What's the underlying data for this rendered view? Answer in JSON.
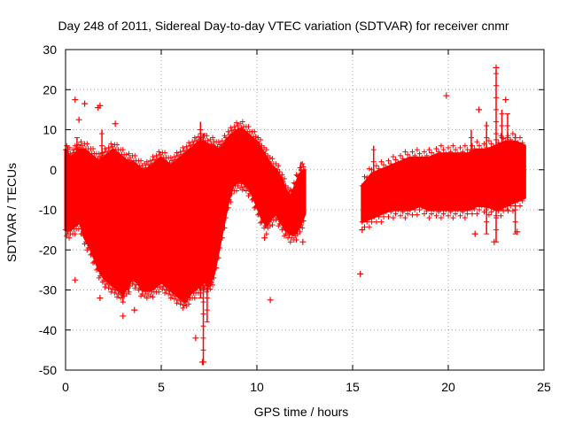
{
  "chart_data": {
    "type": "scatter",
    "title": "Day 248 of 2011, Sidereal Day-to-day VTEC variation (SDTVAR) for receiver cnmr",
    "xlabel": "GPS time / hours",
    "ylabel": "SDTVAR / TECUs",
    "xlim": [
      0,
      25
    ],
    "ylim": [
      -50,
      30
    ],
    "xticks": [
      0,
      5,
      10,
      15,
      20,
      25
    ],
    "yticks": [
      -50,
      -40,
      -30,
      -20,
      -10,
      0,
      10,
      20,
      30
    ],
    "grid": true,
    "marker": "+",
    "color": "#ff0000",
    "series": [
      {
        "name": "SDTVAR",
        "bands": [
          {
            "x": [
              0.0,
              0.25,
              0.5,
              0.75,
              1.0,
              1.25,
              1.5,
              1.75,
              2.0,
              2.25,
              2.5,
              2.75,
              3.0,
              3.25,
              3.5,
              3.75,
              4.0,
              4.25,
              4.5,
              4.75,
              5.0,
              5.25,
              5.5,
              5.75,
              6.0,
              6.25,
              6.5,
              6.75,
              7.0,
              7.25,
              7.5,
              7.75,
              8.0,
              8.25,
              8.5,
              8.75,
              9.0,
              9.25,
              9.5,
              9.75,
              10.0,
              10.25,
              10.5,
              10.75,
              11.0,
              11.25,
              11.5,
              11.75,
              12.0,
              12.25,
              12.5
            ],
            "low": [
              -15,
              -15,
              -14,
              -13,
              -17,
              -19,
              -22,
              -25,
              -27,
              -28,
              -29,
              -30,
              -31,
              -29,
              -27,
              -28,
              -30,
              -30,
              -30,
              -29,
              -28,
              -29,
              -30,
              -31,
              -32,
              -33,
              -31,
              -30,
              -29,
              -28,
              -29,
              -26,
              -20,
              -14,
              -8,
              -4,
              -3,
              -3,
              -4,
              -6,
              -9,
              -12,
              -14,
              -12,
              -11,
              -13,
              -15,
              -16,
              -16,
              -14,
              -11
            ],
            "high": [
              5,
              3,
              4,
              5,
              5,
              4,
              3,
              2,
              3,
              4,
              5,
              4,
              3,
              2,
              2,
              1,
              0,
              0,
              1,
              2,
              3,
              2,
              1,
              2,
              3,
              4,
              5,
              6,
              7,
              7,
              6,
              6,
              5,
              6,
              8,
              9,
              10,
              10,
              9,
              8,
              7,
              5,
              3,
              1,
              0,
              -2,
              -5,
              -7,
              -4,
              -1,
              0
            ]
          },
          {
            "x": [
              15.5,
              16.0,
              16.5,
              17.0,
              17.5,
              18.0,
              18.5,
              19.0,
              19.5,
              20.0,
              20.5,
              21.0,
              21.5,
              22.0,
              22.5,
              23.0,
              23.5,
              24.0
            ],
            "low": [
              -13,
              -12,
              -11,
              -10,
              -10,
              -10,
              -9,
              -10,
              -10,
              -10,
              -10,
              -10,
              -9,
              -9,
              -10,
              -9,
              -8,
              -7
            ],
            "high": [
              -4,
              -1,
              0,
              1,
              2,
              3,
              3,
              3,
              4,
              4,
              4,
              4,
              5,
              5,
              6,
              7,
              7,
              6
            ]
          }
        ],
        "spikes": [
          {
            "x": 0.1,
            "low": -16,
            "high": 6
          },
          {
            "x": 0.6,
            "low": -10,
            "high": 8
          },
          {
            "x": 1.9,
            "low": -15,
            "high": 10
          },
          {
            "x": 3.0,
            "low": -33,
            "high": -5
          },
          {
            "x": 3.3,
            "low": -31,
            "high": -6
          },
          {
            "x": 7.05,
            "low": -32,
            "high": 12
          },
          {
            "x": 7.2,
            "low": -48,
            "high": 9
          },
          {
            "x": 7.4,
            "low": -38,
            "high": 6
          },
          {
            "x": 12.3,
            "low": -12,
            "high": 2
          },
          {
            "x": 16.1,
            "low": -7,
            "high": 6
          },
          {
            "x": 21.2,
            "low": -10,
            "high": 10
          },
          {
            "x": 22.0,
            "low": -16,
            "high": 12
          },
          {
            "x": 22.5,
            "low": -18,
            "high": 25
          },
          {
            "x": 22.8,
            "low": -10,
            "high": 15
          },
          {
            "x": 23.1,
            "low": -10,
            "high": 14
          },
          {
            "x": 23.5,
            "low": -16,
            "high": 9
          }
        ],
        "points": [
          [
            0.5,
            17.5
          ],
          [
            0.7,
            12.5
          ],
          [
            1.0,
            16.5
          ],
          [
            1.7,
            15.5
          ],
          [
            1.8,
            16
          ],
          [
            2.6,
            11.5
          ],
          [
            0.5,
            -27.5
          ],
          [
            1.8,
            -32
          ],
          [
            3.0,
            -36.5
          ],
          [
            3.6,
            -35
          ],
          [
            6.8,
            -42
          ],
          [
            7.2,
            -48
          ],
          [
            7.15,
            -48
          ],
          [
            10.4,
            -17
          ],
          [
            10.7,
            -32.5
          ],
          [
            12.4,
            -18
          ],
          [
            15.4,
            -26
          ],
          [
            15.5,
            -15
          ],
          [
            19.9,
            18.5
          ],
          [
            21.6,
            15
          ],
          [
            21.4,
            -16
          ],
          [
            22.4,
            -18
          ],
          [
            22.5,
            25.5
          ],
          [
            23.0,
            17.5
          ],
          [
            23.6,
            -15.5
          ]
        ]
      }
    ]
  }
}
